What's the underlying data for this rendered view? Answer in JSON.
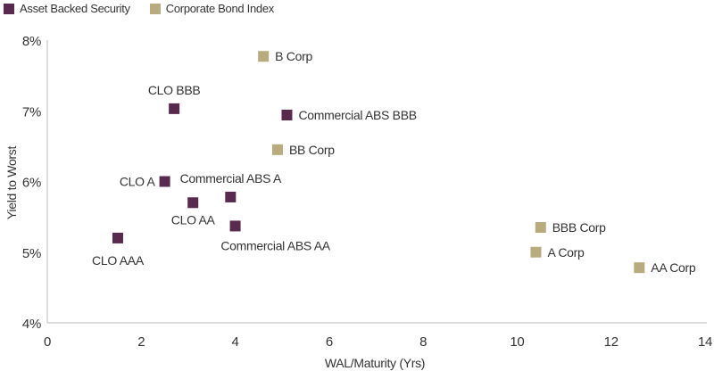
{
  "chart_data": {
    "type": "scatter",
    "xlabel": "WAL/Maturity (Yrs)",
    "ylabel": "Yield to Worst",
    "xlim": [
      0,
      14
    ],
    "ylim": [
      4,
      8
    ],
    "x_ticks": [
      0,
      2,
      4,
      6,
      8,
      10,
      12,
      14
    ],
    "y_ticks": [
      4,
      5,
      6,
      7,
      8
    ],
    "y_tick_labels": [
      "4%",
      "5%",
      "6%",
      "7%",
      "8%"
    ],
    "grid": false,
    "legend_position": "top-left",
    "series": [
      {
        "name": "Asset Backed Security",
        "color": "#582a4d",
        "points": [
          {
            "label": "CLO AAA",
            "x": 1.5,
            "y": 5.2,
            "label_pos": "below"
          },
          {
            "label": "CLO A",
            "x": 2.5,
            "y": 6.0,
            "label_pos": "left"
          },
          {
            "label": "CLO AA",
            "x": 3.1,
            "y": 5.7,
            "label_pos": "below"
          },
          {
            "label": "CLO BBB",
            "x": 2.7,
            "y": 7.03,
            "label_pos": "above"
          },
          {
            "label": "Commercial ABS A",
            "x": 3.9,
            "y": 5.78,
            "label_pos": "above"
          },
          {
            "label": "Commercial ABS AA",
            "x": 4.0,
            "y": 5.37,
            "label_pos": "below"
          },
          {
            "label": "Commercial ABS BBB",
            "x": 5.1,
            "y": 6.94,
            "label_pos": "right"
          }
        ]
      },
      {
        "name": "Corporate Bond Index",
        "color": "#b8ab7d",
        "points": [
          {
            "label": "B Corp",
            "x": 4.6,
            "y": 7.77,
            "label_pos": "right"
          },
          {
            "label": "BB Corp",
            "x": 4.9,
            "y": 6.45,
            "label_pos": "right"
          },
          {
            "label": "BBB Corp",
            "x": 10.5,
            "y": 5.35,
            "label_pos": "right"
          },
          {
            "label": "A Corp",
            "x": 10.4,
            "y": 5.0,
            "label_pos": "right"
          },
          {
            "label": "AA Corp",
            "x": 12.6,
            "y": 4.78,
            "label_pos": "right"
          }
        ]
      }
    ]
  }
}
